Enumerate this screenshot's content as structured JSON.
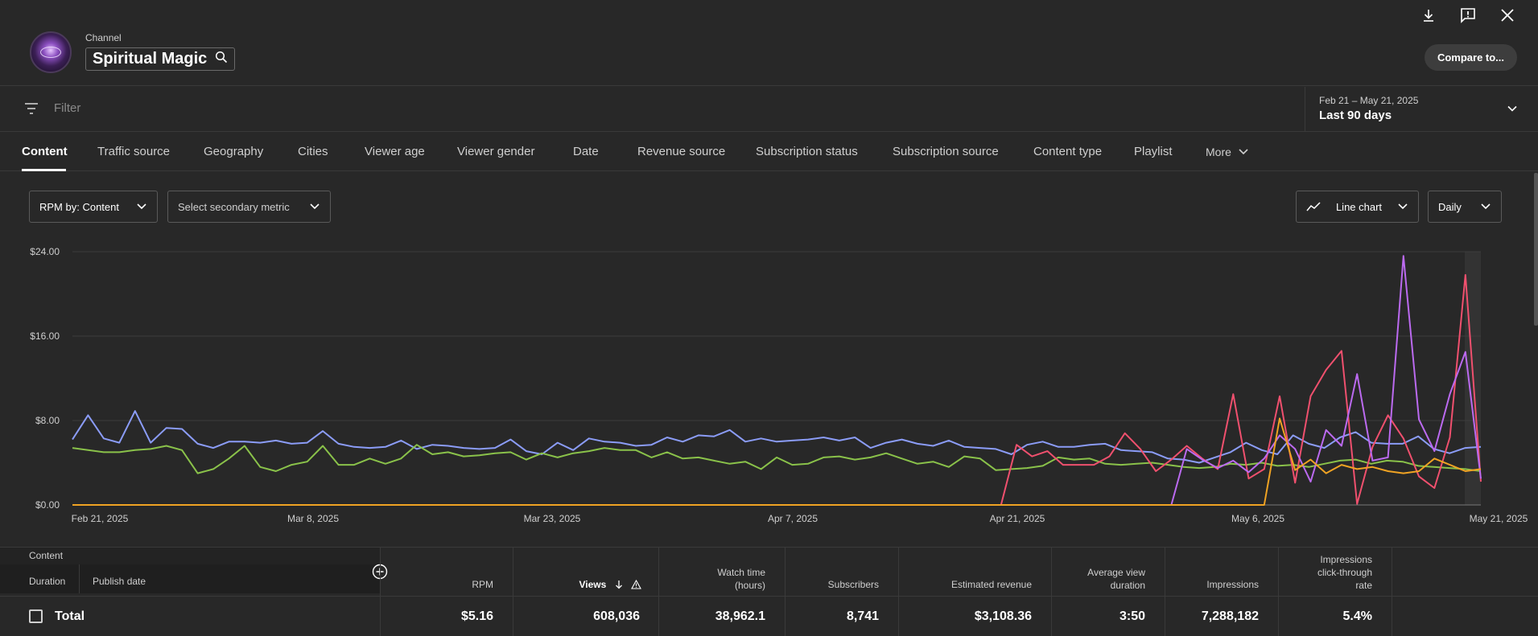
{
  "header": {
    "channel_label": "Channel",
    "channel_name": "Spiritual Magic",
    "compare_label": "Compare to...",
    "icons": [
      "download-icon",
      "feedback-icon",
      "close-icon"
    ]
  },
  "filter": {
    "placeholder": "Filter",
    "date_range": "Feb 21 – May 21, 2025",
    "date_period": "Last 90 days"
  },
  "tabs": [
    {
      "label": "Content",
      "active": true
    },
    {
      "label": "Traffic source"
    },
    {
      "label": "Geography"
    },
    {
      "label": "Cities"
    },
    {
      "label": "Viewer age"
    },
    {
      "label": "Viewer gender"
    },
    {
      "label": "Date"
    },
    {
      "label": "Revenue source"
    },
    {
      "label": "Subscription status"
    },
    {
      "label": "Subscription source"
    },
    {
      "label": "Content type"
    },
    {
      "label": "Playlist"
    },
    {
      "label": "More"
    }
  ],
  "controls": {
    "primary_metric": "RPM by: Content",
    "secondary_metric": "Select secondary metric",
    "chart_type": "Line chart",
    "granularity": "Daily"
  },
  "chart_data": {
    "type": "line",
    "ylim": [
      0,
      24
    ],
    "y_ticks": [
      "$24.00",
      "$16.00",
      "$8.00",
      "$0.00"
    ],
    "x_ticks": [
      "Feb 21, 2025",
      "Mar 8, 2025",
      "Mar 23, 2025",
      "Apr 7, 2025",
      "Apr 21, 2025",
      "May 6, 2025",
      "May 21, 2025"
    ],
    "grid": true,
    "series": [
      {
        "color": "#8b9cf7",
        "values": [
          6.2,
          8.5,
          6.3,
          5.9,
          8.9,
          5.9,
          7.3,
          7.2,
          5.8,
          5.4,
          6.0,
          6.0,
          5.9,
          6.1,
          5.8,
          5.9,
          7.0,
          5.8,
          5.5,
          5.4,
          5.5,
          6.1,
          5.3,
          5.7,
          5.6,
          5.4,
          5.3,
          5.4,
          6.2,
          5.1,
          4.8,
          5.9,
          5.2,
          6.3,
          6.0,
          5.9,
          5.6,
          5.7,
          6.4,
          6.0,
          6.6,
          6.5,
          7.1,
          6.0,
          6.3,
          6.0,
          6.1,
          6.2,
          6.4,
          6.1,
          6.4,
          5.4,
          5.9,
          6.2,
          5.8,
          5.6,
          6.1,
          5.5,
          5.4,
          5.3,
          4.8,
          5.7,
          6.0,
          5.5,
          5.5,
          5.7,
          5.8,
          5.2,
          5.1,
          5.0,
          4.4,
          4.3,
          4.0,
          4.5,
          5.0,
          5.9,
          5.2,
          4.8,
          6.6,
          5.8,
          5.4,
          6.4,
          6.9,
          5.9,
          5.8,
          5.8,
          6.5,
          5.3,
          4.9,
          5.4,
          5.5
        ]
      },
      {
        "color": "#8ac24a",
        "values": [
          5.4,
          5.2,
          5.0,
          5.0,
          5.2,
          5.3,
          5.6,
          5.2,
          3.0,
          3.4,
          4.4,
          5.6,
          3.6,
          3.2,
          3.8,
          4.1,
          5.6,
          3.8,
          3.8,
          4.4,
          3.9,
          4.4,
          5.7,
          4.8,
          5.0,
          4.6,
          4.7,
          4.9,
          5.0,
          4.3,
          4.9,
          4.5,
          4.9,
          5.1,
          5.4,
          5.2,
          5.2,
          4.5,
          5.0,
          4.4,
          4.5,
          4.2,
          3.9,
          4.1,
          3.4,
          4.5,
          3.8,
          3.9,
          4.5,
          4.6,
          4.3,
          4.5,
          4.9,
          4.4,
          3.9,
          4.1,
          3.6,
          4.6,
          4.4,
          3.3,
          3.4,
          3.5,
          3.7,
          4.5,
          4.3,
          4.4,
          3.9,
          3.8,
          3.9,
          4.0,
          3.8,
          3.6,
          3.5,
          3.6,
          3.9,
          3.8,
          4.0,
          3.7,
          3.8,
          3.6,
          3.9,
          4.2,
          4.3,
          3.9,
          4.2,
          4.1,
          3.7,
          3.6,
          3.5,
          3.4,
          3.2
        ]
      },
      {
        "color": "#f0506e",
        "values": [
          0,
          0,
          0,
          0,
          0,
          0,
          0,
          0,
          0,
          0,
          0,
          0,
          0,
          0,
          0,
          0,
          0,
          0,
          0,
          0,
          0,
          0,
          0,
          0,
          0,
          0,
          0,
          0,
          0,
          0,
          0,
          0,
          0,
          0,
          0,
          0,
          0,
          0,
          0,
          0,
          0,
          0,
          0,
          0,
          0,
          0,
          0,
          0,
          0,
          0,
          0,
          0,
          0,
          0,
          0,
          0,
          0,
          0,
          0,
          0,
          0,
          5.7,
          4.6,
          5.1,
          3.8,
          3.8,
          3.8,
          4.6,
          6.8,
          5.3,
          3.2,
          4.3,
          5.6,
          4.4,
          3.4,
          10.5,
          2.5,
          3.4,
          10.3,
          2.1,
          10.3,
          12.8,
          14.6,
          0.1,
          5.5,
          8.5,
          6.3,
          2.7,
          1.6,
          6.4,
          21.8,
          2.2
        ]
      },
      {
        "color": "#bb6af0",
        "values": [
          0,
          0,
          0,
          0,
          0,
          0,
          0,
          0,
          0,
          0,
          0,
          0,
          0,
          0,
          0,
          0,
          0,
          0,
          0,
          0,
          0,
          0,
          0,
          0,
          0,
          0,
          0,
          0,
          0,
          0,
          0,
          0,
          0,
          0,
          0,
          0,
          0,
          0,
          0,
          0,
          0,
          0,
          0,
          0,
          0,
          0,
          0,
          0,
          0,
          0,
          0,
          0,
          0,
          0,
          0,
          0,
          0,
          0,
          0,
          0,
          0,
          0,
          0,
          0,
          0,
          0,
          0,
          0,
          0,
          0,
          0,
          0,
          5.3,
          4.3,
          3.5,
          4.2,
          3.1,
          4.4,
          6.6,
          5.3,
          2.2,
          7.1,
          5.6,
          12.4,
          4.2,
          4.5,
          23.6,
          8.1,
          5.1,
          10.5,
          14.5,
          2.5
        ]
      },
      {
        "color": "#f0a323",
        "values": [
          0,
          0,
          0,
          0,
          0,
          0,
          0,
          0,
          0,
          0,
          0,
          0,
          0,
          0,
          0,
          0,
          0,
          0,
          0,
          0,
          0,
          0,
          0,
          0,
          0,
          0,
          0,
          0,
          0,
          0,
          0,
          0,
          0,
          0,
          0,
          0,
          0,
          0,
          0,
          0,
          0,
          0,
          0,
          0,
          0,
          0,
          0,
          0,
          0,
          0,
          0,
          0,
          0,
          0,
          0,
          0,
          0,
          0,
          0,
          0,
          0,
          0,
          0,
          0,
          0,
          0,
          0,
          0,
          0,
          0,
          0,
          0,
          0,
          0,
          0,
          0,
          0,
          0,
          8.2,
          3.3,
          4.3,
          3.0,
          3.8,
          3.4,
          3.6,
          3.2,
          3.0,
          3.2,
          4.4,
          3.8,
          3.2,
          3.4
        ]
      }
    ]
  },
  "table": {
    "content_header": "Content",
    "duration_header": "Duration",
    "publish_header": "Publish date",
    "columns": [
      {
        "label": "RPM"
      },
      {
        "label": "Views"
      },
      {
        "label": "Watch time (hours)"
      },
      {
        "label": "Subscribers"
      },
      {
        "label": "Estimated revenue"
      },
      {
        "label": "Average view duration"
      },
      {
        "label": "Impressions"
      },
      {
        "label": "Impressions click-through rate"
      }
    ],
    "total": {
      "label": "Total",
      "rpm": "$5.16",
      "views": "608,036",
      "watch_time": "38,962.1",
      "subscribers": "8,741",
      "revenue": "$3,108.36",
      "avg_duration": "3:50",
      "impressions": "7,288,182",
      "ctr": "5.4%"
    }
  }
}
